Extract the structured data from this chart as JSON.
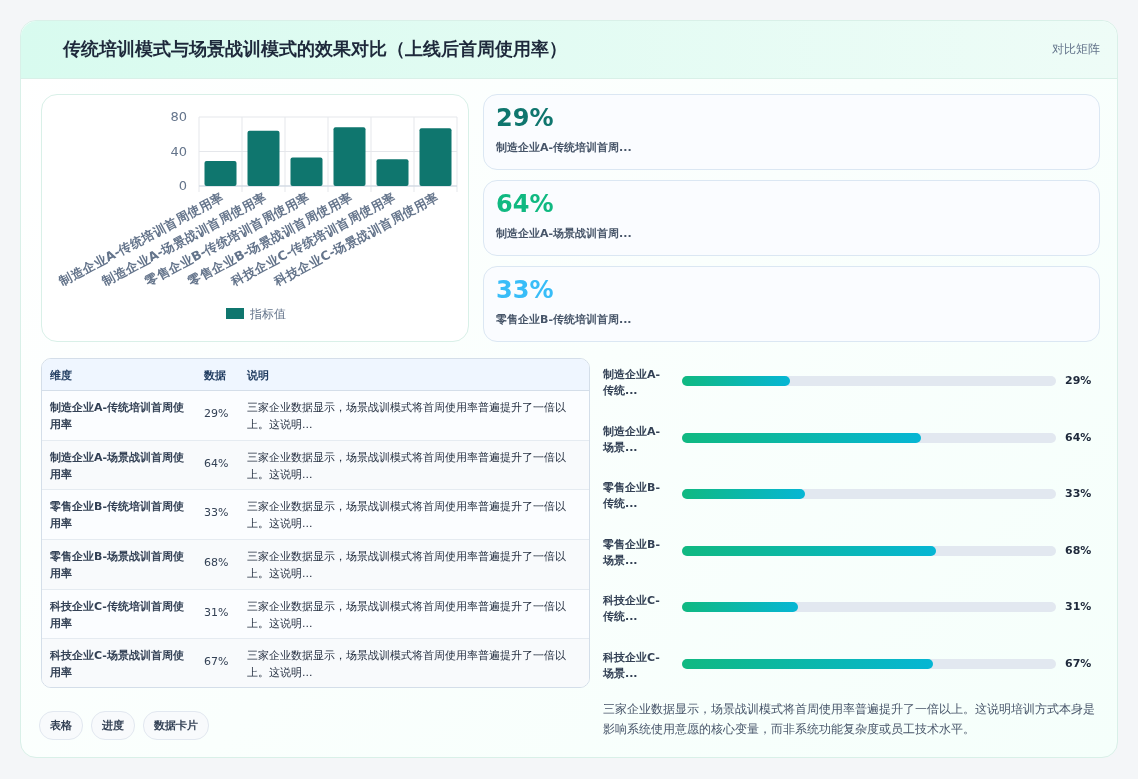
{
  "chart_data": [
    {
      "type": "bar",
      "title": "传统培训模式与场景战训模式的效果对比（上线后首周使用率）",
      "categories": [
        "制造企业A-传统培训首周使用率",
        "制造企业A-场景战训首周使用率",
        "零售企业B-传统培训首周使用率",
        "零售企业B-场景战训首周使用率",
        "科技企业C-传统培训首周使用率",
        "科技企业C-场景战训首周使用率"
      ],
      "series": [
        {
          "name": "指标值",
          "color": "#0f766e",
          "values": [
            29,
            64,
            33,
            68,
            31,
            67
          ]
        }
      ],
      "ylim": [
        0,
        80
      ],
      "yticks": [
        0,
        40,
        80
      ],
      "grid": true,
      "legend": "bottom"
    },
    {
      "type": "other",
      "categories": [
        "制造企业A-传统培训首周...",
        "制造企业A-场景战训首周...",
        "零售企业B-传统培训首周..."
      ],
      "values": [
        29,
        64,
        33
      ],
      "value_labels": [
        "29%",
        "64%",
        "33%"
      ],
      "title": "对比矩阵"
    },
    {
      "type": "other",
      "categories": [
        "制造企业A-传统培训首周使用率",
        "制造企业A-场景战训首周使用率",
        "零售企业B-传统培训首周使用率",
        "零售企业B-场景战训首周使用率",
        "科技企业C-传统培训首周使用率",
        "科技企业C-场景战训首周使用率"
      ],
      "values": [
        29,
        64,
        33,
        68,
        31,
        67
      ],
      "value_labels": [
        "29%",
        "64%",
        "33%",
        "68%",
        "31%",
        "67%"
      ],
      "annotations": [
        "维度",
        "数据",
        "说明",
        "三家企业数据显示，场景战训模式将首周使用率普遍提升了一倍以上。这说明...",
        "三家企业数据显示，场景战训模式将首周使用率普遍提升了一倍以上。这说明...",
        "三家企业数据显示，场景战训模式将首周使用率普遍提升了一倍以上。这说明...",
        "三家企业数据显示，场景战训模式将首周使用率普遍提升了一倍以上。这说明...",
        "三家企业数据显示，场景战训模式将首周使用率普遍提升了一倍以上。这说明...",
        "三家企业数据显示，场景战训模式将首周使用率普遍提升了一倍以上。这说明...",
        "表格",
        "进度",
        "数据卡片"
      ]
    },
    {
      "type": "bar",
      "orientation": "horizontal",
      "categories": [
        "制造企业A-传统...",
        "制造企业A-场景...",
        "零售企业B-传统...",
        "零售企业B-场景...",
        "科技企业C-传统...",
        "科技企业C-场景..."
      ],
      "values": [
        29,
        64,
        33,
        68,
        31,
        67
      ],
      "value_labels": [
        "29%",
        "64%",
        "33%",
        "68%",
        "31%",
        "67%"
      ],
      "color": "#10b981",
      "xlim": [
        0,
        100
      ],
      "tick_labels": false,
      "annotations": [
        "三家企业数据显示，场景战训模式将首周使用率普遍提升了一倍以上。这说明培训方式本身是影响系统使用意愿的核心变量，而非系统功能复杂度或员工技术水平。"
      ]
    }
  ]
}
